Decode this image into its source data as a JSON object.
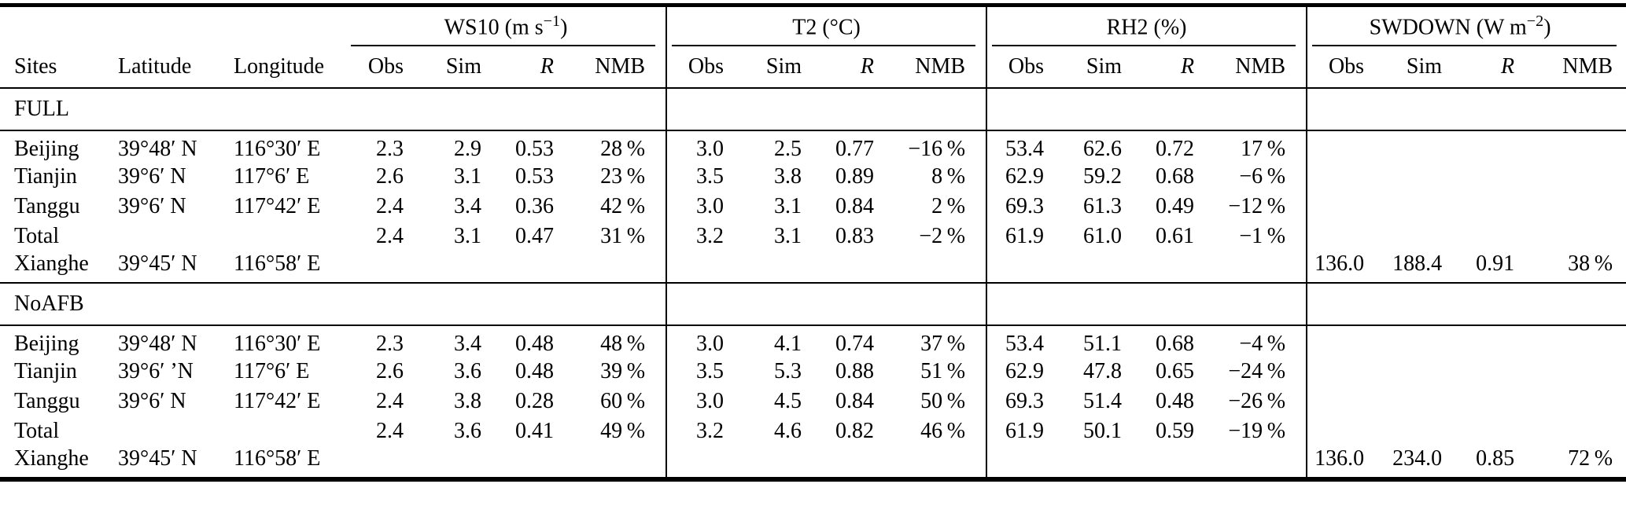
{
  "table": {
    "columns": {
      "sites": "Sites",
      "latitude": "Latitude",
      "longitude": "Longitude",
      "obs": "Obs",
      "sim": "Sim",
      "r": "R",
      "nmb": "NMB"
    },
    "groups": [
      {
        "label": "WS10",
        "unit_prefix": " (m s",
        "unit_sup": "−1",
        "unit_suffix": ")"
      },
      {
        "label": "T2",
        "unit_prefix": " (°C)",
        "unit_sup": "",
        "unit_suffix": ""
      },
      {
        "label": "RH2",
        "unit_prefix": " (%)",
        "unit_sup": "",
        "unit_suffix": ""
      },
      {
        "label": "SWDOWN",
        "unit_prefix": " (W m",
        "unit_sup": "−2",
        "unit_suffix": ")"
      }
    ],
    "sections": [
      {
        "name": "FULL",
        "rows": [
          {
            "site": "Beijing",
            "lat": "39°48′ N",
            "lon": "116°30′ E",
            "ws10": [
              "2.3",
              "2.9",
              "0.53",
              "28 %"
            ],
            "t2": [
              "3.0",
              "2.5",
              "0.77",
              "−16 %"
            ],
            "rh2": [
              "53.4",
              "62.6",
              "0.72",
              "17 %"
            ],
            "swdown": [
              "",
              "",
              "",
              ""
            ]
          },
          {
            "site": "Tianjin",
            "lat": "39°6′ N",
            "lon": "117°6′ E",
            "ws10": [
              "2.6",
              "3.1",
              "0.53",
              "23 %"
            ],
            "t2": [
              "3.5",
              "3.8",
              "0.89",
              "8 %"
            ],
            "rh2": [
              "62.9",
              "59.2",
              "0.68",
              "−6 %"
            ],
            "swdown": [
              "",
              "",
              "",
              ""
            ]
          },
          {
            "site": "Tanggu",
            "lat": "39°6′ N",
            "lon": "117°42′ E",
            "ws10": [
              "2.4",
              "3.4",
              "0.36",
              "42 %"
            ],
            "t2": [
              "3.0",
              "3.1",
              "0.84",
              "2 %"
            ],
            "rh2": [
              "69.3",
              "61.3",
              "0.49",
              "−12 %"
            ],
            "swdown": [
              "",
              "",
              "",
              ""
            ]
          },
          {
            "site": "Total",
            "lat": "",
            "lon": "",
            "ws10": [
              "2.4",
              "3.1",
              "0.47",
              "31 %"
            ],
            "t2": [
              "3.2",
              "3.1",
              "0.83",
              "−2 %"
            ],
            "rh2": [
              "61.9",
              "61.0",
              "0.61",
              "−1 %"
            ],
            "swdown": [
              "",
              "",
              "",
              ""
            ]
          },
          {
            "site": "Xianghe",
            "lat": "39°45′ N",
            "lon": "116°58′ E",
            "ws10": [
              "",
              "",
              "",
              ""
            ],
            "t2": [
              "",
              "",
              "",
              ""
            ],
            "rh2": [
              "",
              "",
              "",
              ""
            ],
            "swdown": [
              "136.0",
              "188.4",
              "0.91",
              "38 %"
            ]
          }
        ]
      },
      {
        "name": "NoAFB",
        "rows": [
          {
            "site": "Beijing",
            "lat": "39°48′ N",
            "lon": "116°30′ E",
            "ws10": [
              "2.3",
              "3.4",
              "0.48",
              "48 %"
            ],
            "t2": [
              "3.0",
              "4.1",
              "0.74",
              "37 %"
            ],
            "rh2": [
              "53.4",
              "51.1",
              "0.68",
              "−4 %"
            ],
            "swdown": [
              "",
              "",
              "",
              ""
            ]
          },
          {
            "site": "Tianjin",
            "lat": "39°6′ ’N",
            "lon": "117°6′ E",
            "ws10": [
              "2.6",
              "3.6",
              "0.48",
              "39 %"
            ],
            "t2": [
              "3.5",
              "5.3",
              "0.88",
              "51 %"
            ],
            "rh2": [
              "62.9",
              "47.8",
              "0.65",
              "−24 %"
            ],
            "swdown": [
              "",
              "",
              "",
              ""
            ]
          },
          {
            "site": "Tanggu",
            "lat": "39°6′ N",
            "lon": "117°42′ E",
            "ws10": [
              "2.4",
              "3.8",
              "0.28",
              "60 %"
            ],
            "t2": [
              "3.0",
              "4.5",
              "0.84",
              "50 %"
            ],
            "rh2": [
              "69.3",
              "51.4",
              "0.48",
              "−26 %"
            ],
            "swdown": [
              "",
              "",
              "",
              ""
            ]
          },
          {
            "site": "Total",
            "lat": "",
            "lon": "",
            "ws10": [
              "2.4",
              "3.6",
              "0.41",
              "49 %"
            ],
            "t2": [
              "3.2",
              "4.6",
              "0.82",
              "46 %"
            ],
            "rh2": [
              "61.9",
              "50.1",
              "0.59",
              "−19 %"
            ],
            "swdown": [
              "",
              "",
              "",
              ""
            ]
          },
          {
            "site": "Xianghe",
            "lat": "39°45′ N",
            "lon": "116°58′ E",
            "ws10": [
              "",
              "",
              "",
              ""
            ],
            "t2": [
              "",
              "",
              "",
              ""
            ],
            "rh2": [
              "",
              "",
              "",
              ""
            ],
            "swdown": [
              "136.0",
              "234.0",
              "0.85",
              "72 %"
            ]
          }
        ]
      }
    ]
  }
}
